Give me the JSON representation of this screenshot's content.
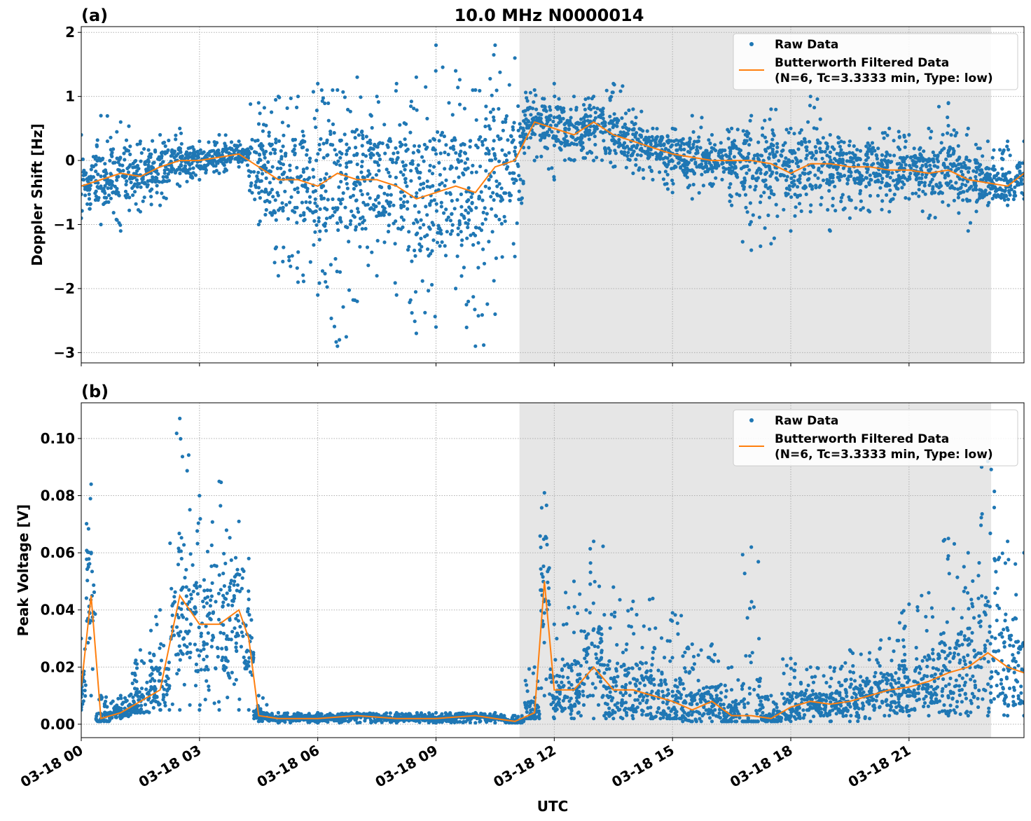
{
  "title": "10.0 MHz N0000014",
  "xlabel": "UTC",
  "x_tick_labels": [
    "03-18 00",
    "03-18 03",
    "03-18 06",
    "03-18 09",
    "03-18 12",
    "03-18 15",
    "03-18 18",
    "03-18 21"
  ],
  "colors": {
    "raw": "#1f77b4",
    "filtered": "#ff7f0e",
    "shade": "#e6e6e6",
    "grid": "#b0b0b0"
  },
  "legend": {
    "raw": "Raw Data",
    "filtered_line1": "Butterworth Filtered Data",
    "filtered_line2": "(N=6, Tc=3.3333 min, Type: low)",
    "placement": "upper-right"
  },
  "chart_data": [
    {
      "type": "scatter+line",
      "panel_label": "(a)",
      "ylabel": "Doppler Shift [Hz]",
      "xlim": [
        "03-18 00:00",
        "03-18 23:55"
      ],
      "ylim": [
        -3.16,
        2.09
      ],
      "y_ticks": [
        2,
        1,
        0,
        -1,
        -2,
        -3
      ],
      "y_tick_labels": [
        "2",
        "1",
        "0",
        "−1",
        "−2",
        "−3"
      ],
      "grid": true,
      "shaded_span": [
        "03-18 11:07",
        "03-18 23:05"
      ],
      "times": [
        "00:00",
        "00:30",
        "01:00",
        "01:30",
        "02:00",
        "02:30",
        "03:00",
        "03:30",
        "04:00",
        "04:30",
        "05:00",
        "05:30",
        "06:00",
        "06:30",
        "07:00",
        "07:30",
        "08:00",
        "08:30",
        "09:00",
        "09:30",
        "10:00",
        "10:30",
        "11:00",
        "11:30",
        "12:00",
        "12:30",
        "13:00",
        "13:30",
        "14:00",
        "14:30",
        "15:00",
        "15:30",
        "16:00",
        "16:30",
        "17:00",
        "17:30",
        "18:00",
        "18:30",
        "19:00",
        "19:30",
        "20:00",
        "20:30",
        "21:00",
        "21:30",
        "22:00",
        "22:30",
        "23:00",
        "23:30",
        "23:55"
      ],
      "filtered": [
        -0.4,
        -0.3,
        -0.2,
        -0.25,
        -0.1,
        0.0,
        0.0,
        0.05,
        0.1,
        -0.1,
        -0.3,
        -0.3,
        -0.4,
        -0.2,
        -0.3,
        -0.3,
        -0.4,
        -0.6,
        -0.5,
        -0.4,
        -0.5,
        -0.1,
        0.0,
        0.6,
        0.5,
        0.4,
        0.6,
        0.4,
        0.3,
        0.2,
        0.1,
        0.05,
        0.0,
        0.0,
        0.0,
        -0.05,
        -0.2,
        -0.05,
        -0.05,
        -0.1,
        -0.1,
        -0.15,
        -0.15,
        -0.2,
        -0.15,
        -0.3,
        -0.35,
        -0.4,
        -0.2
      ],
      "raw_low": [
        -0.9,
        -1.0,
        -1.1,
        -0.8,
        -0.7,
        -0.4,
        -0.3,
        -0.2,
        -0.1,
        -1.0,
        -1.8,
        -1.9,
        -2.1,
        -2.9,
        -2.2,
        -1.8,
        -2.1,
        -2.7,
        -2.6,
        -2.0,
        -2.9,
        -2.4,
        -1.5,
        0.0,
        -0.3,
        0.0,
        0.0,
        -0.1,
        -0.2,
        -0.3,
        -0.5,
        -0.6,
        -0.4,
        -0.7,
        -1.4,
        -1.3,
        -1.1,
        -0.8,
        -1.1,
        -0.9,
        -0.8,
        -0.8,
        -0.6,
        -0.9,
        -0.7,
        -1.1,
        -0.7,
        -0.7,
        -0.6
      ],
      "raw_high": [
        0.4,
        0.7,
        0.6,
        0.3,
        0.4,
        0.5,
        0.3,
        0.4,
        0.3,
        0.9,
        1.0,
        1.0,
        1.2,
        1.1,
        1.3,
        1.0,
        1.2,
        1.3,
        1.8,
        1.4,
        1.1,
        1.8,
        1.6,
        1.1,
        1.2,
        1.0,
        1.0,
        1.2,
        0.8,
        0.5,
        0.5,
        0.7,
        0.4,
        0.5,
        0.7,
        0.8,
        0.5,
        1.0,
        0.4,
        0.3,
        0.5,
        0.5,
        0.4,
        0.5,
        0.9,
        0.5,
        0.3,
        0.3,
        0.3
      ]
    },
    {
      "type": "scatter+line",
      "panel_label": "(b)",
      "ylabel": "Peak Voltage [V]",
      "xlim": [
        "03-18 00:00",
        "03-18 23:55"
      ],
      "ylim": [
        -0.0047,
        0.1125
      ],
      "y_ticks": [
        0.0,
        0.02,
        0.04,
        0.06,
        0.08,
        0.1
      ],
      "y_tick_labels": [
        "0.00",
        "0.02",
        "0.04",
        "0.06",
        "0.08",
        "0.10"
      ],
      "grid": true,
      "shaded_span": [
        "03-18 11:07",
        "03-18 23:05"
      ],
      "times": [
        "00:00",
        "00:15",
        "00:30",
        "01:00",
        "01:30",
        "02:00",
        "02:30",
        "03:00",
        "03:30",
        "04:00",
        "04:15",
        "04:30",
        "05:00",
        "06:00",
        "07:00",
        "08:00",
        "09:00",
        "10:00",
        "10:30",
        "11:00",
        "11:30",
        "11:45",
        "12:00",
        "12:30",
        "13:00",
        "13:30",
        "14:00",
        "14:30",
        "15:00",
        "15:30",
        "16:00",
        "16:30",
        "17:00",
        "17:30",
        "18:00",
        "18:30",
        "19:00",
        "19:30",
        "20:00",
        "20:30",
        "21:00",
        "21:30",
        "22:00",
        "22:30",
        "23:00",
        "23:30",
        "23:55"
      ],
      "filtered": [
        0.013,
        0.045,
        0.002,
        0.004,
        0.008,
        0.012,
        0.045,
        0.035,
        0.035,
        0.04,
        0.03,
        0.003,
        0.002,
        0.002,
        0.003,
        0.002,
        0.002,
        0.003,
        0.002,
        0.001,
        0.004,
        0.05,
        0.012,
        0.012,
        0.02,
        0.012,
        0.012,
        0.01,
        0.008,
        0.005,
        0.008,
        0.003,
        0.003,
        0.002,
        0.006,
        0.008,
        0.007,
        0.008,
        0.01,
        0.012,
        0.013,
        0.015,
        0.018,
        0.02,
        0.025,
        0.02,
        0.018
      ],
      "raw_low": [
        0.005,
        0.01,
        0.001,
        0.002,
        0.004,
        0.005,
        0.005,
        0.005,
        0.005,
        0.005,
        0.005,
        0.001,
        0.0005,
        0.0005,
        0.0005,
        0.0005,
        0.0005,
        0.0005,
        0.0005,
        0.0005,
        0.002,
        0.01,
        0.002,
        0.002,
        0.002,
        0.002,
        0.002,
        0.002,
        0.002,
        0.001,
        0.001,
        0.001,
        0.001,
        0.001,
        0.001,
        0.001,
        0.001,
        0.001,
        0.002,
        0.003,
        0.003,
        0.003,
        0.003,
        0.003,
        0.003,
        0.003,
        0.003
      ],
      "raw_high": [
        0.03,
        0.084,
        0.01,
        0.01,
        0.026,
        0.04,
        0.107,
        0.08,
        0.085,
        0.071,
        0.058,
        0.01,
        0.004,
        0.004,
        0.004,
        0.004,
        0.004,
        0.004,
        0.004,
        0.003,
        0.02,
        0.081,
        0.035,
        0.05,
        0.064,
        0.048,
        0.043,
        0.044,
        0.039,
        0.028,
        0.028,
        0.02,
        0.062,
        0.01,
        0.023,
        0.02,
        0.02,
        0.026,
        0.025,
        0.03,
        0.042,
        0.046,
        0.065,
        0.06,
        0.092,
        0.064,
        0.06
      ]
    }
  ]
}
